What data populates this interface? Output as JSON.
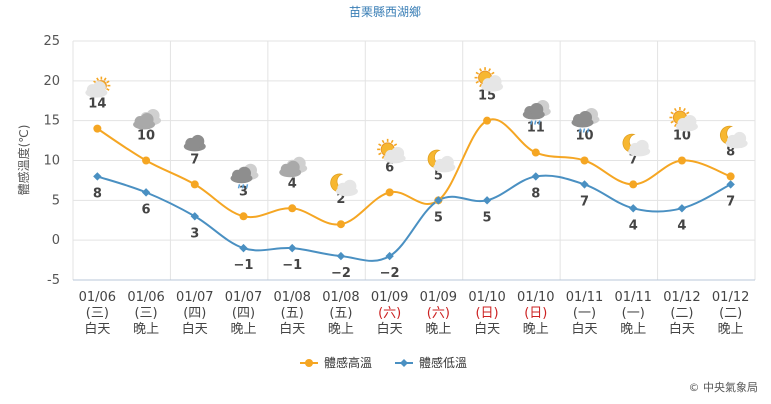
{
  "chart_data": {
    "type": "line",
    "title": "苗栗縣西湖鄉",
    "ylabel": "體感溫度(℃)",
    "ylim": [
      -5,
      25
    ],
    "yticks": [
      -5,
      0,
      5,
      10,
      15,
      20,
      25
    ],
    "grid": true,
    "legend_position": "bottom-center",
    "categories": [
      {
        "date": "01/06",
        "weekday": "(三)",
        "period": "白天",
        "holiday": false,
        "icon": "partly-sunny-icon"
      },
      {
        "date": "01/06",
        "weekday": "(三)",
        "period": "晚上",
        "holiday": false,
        "icon": "cloudy-icon"
      },
      {
        "date": "01/07",
        "weekday": "(四)",
        "period": "白天",
        "holiday": false,
        "icon": "overcast-icon"
      },
      {
        "date": "01/07",
        "weekday": "(四)",
        "period": "晚上",
        "holiday": false,
        "icon": "rain-cloud-icon"
      },
      {
        "date": "01/08",
        "weekday": "(五)",
        "period": "白天",
        "holiday": false,
        "icon": "cloudy-icon"
      },
      {
        "date": "01/08",
        "weekday": "(五)",
        "period": "晚上",
        "holiday": false,
        "icon": "moon-cloud-icon"
      },
      {
        "date": "01/09",
        "weekday": "(六)",
        "period": "白天",
        "holiday": true,
        "icon": "sun-cloud-icon"
      },
      {
        "date": "01/09",
        "weekday": "(六)",
        "period": "晚上",
        "holiday": true,
        "icon": "moon-cloud-icon"
      },
      {
        "date": "01/10",
        "weekday": "(日)",
        "period": "白天",
        "holiday": true,
        "icon": "sun-cloud-icon"
      },
      {
        "date": "01/10",
        "weekday": "(日)",
        "period": "晚上",
        "holiday": true,
        "icon": "rain-cloud-icon"
      },
      {
        "date": "01/11",
        "weekday": "(一)",
        "period": "白天",
        "holiday": false,
        "icon": "rain-cloud-icon"
      },
      {
        "date": "01/11",
        "weekday": "(一)",
        "period": "晚上",
        "holiday": false,
        "icon": "moon-cloud-icon"
      },
      {
        "date": "01/12",
        "weekday": "(二)",
        "period": "白天",
        "holiday": false,
        "icon": "sun-cloud-icon"
      },
      {
        "date": "01/12",
        "weekday": "(二)",
        "period": "晚上",
        "holiday": false,
        "icon": "moon-cloud-icon"
      }
    ],
    "series": [
      {
        "name": "體感高溫",
        "color": "#f5a623",
        "marker": "circle",
        "values": [
          14,
          10,
          7,
          3,
          4,
          2,
          6,
          5,
          15,
          11,
          10,
          7,
          10,
          8
        ]
      },
      {
        "name": "體感低溫",
        "color": "#4a90c2",
        "marker": "diamond",
        "values": [
          8,
          6,
          3,
          -1,
          -1,
          -2,
          -2,
          5,
          5,
          8,
          7,
          4,
          4,
          7
        ]
      }
    ]
  },
  "footer": {
    "credit": "© 中央氣象局"
  }
}
